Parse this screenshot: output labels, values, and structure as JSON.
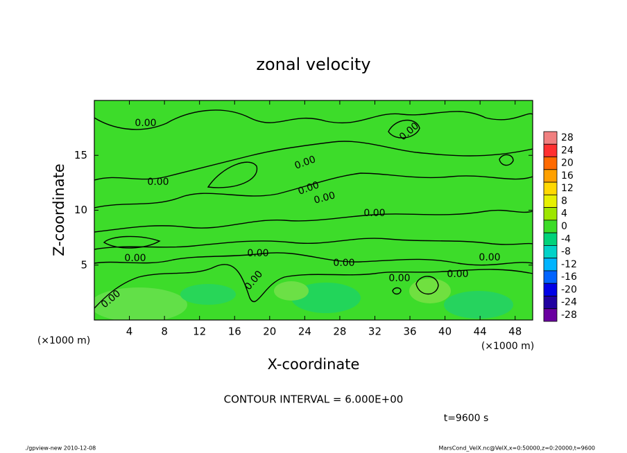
{
  "chart_data": {
    "type": "contour",
    "title": "zonal velocity",
    "xlabel": "X-coordinate",
    "ylabel": "Z-coordinate",
    "unit_label": "(×1000 m)",
    "xlim": [
      0,
      50
    ],
    "ylim": [
      0,
      20
    ],
    "xticks": [
      4,
      8,
      12,
      16,
      20,
      24,
      28,
      32,
      36,
      40,
      44,
      48
    ],
    "yticks": [
      5,
      10,
      15
    ],
    "contour_levels": [
      0
    ],
    "contour_label": "0.00",
    "contour_interval": "CONTOUR INTERVAL = 6.000E+00",
    "time_label": "t=9600 s",
    "colorbar": {
      "ticks": [
        28,
        24,
        20,
        16,
        12,
        8,
        4,
        0,
        -4,
        -8,
        -12,
        -16,
        -20,
        -24,
        -28
      ],
      "colors": [
        "#f08080",
        "#ff3030",
        "#ff6a00",
        "#ffa000",
        "#ffd800",
        "#e6f000",
        "#9ee600",
        "#3cdc28",
        "#00d27a",
        "#00d2c8",
        "#00b4ff",
        "#0064ff",
        "#0000e6",
        "#2000a0",
        "#6a00a0"
      ]
    },
    "footer_left": "./gpview-new  2010-12-08",
    "footer_right": "MarsCond_VelX.nc@VelX,x=0:50000,z=0:20000,t=9600"
  }
}
